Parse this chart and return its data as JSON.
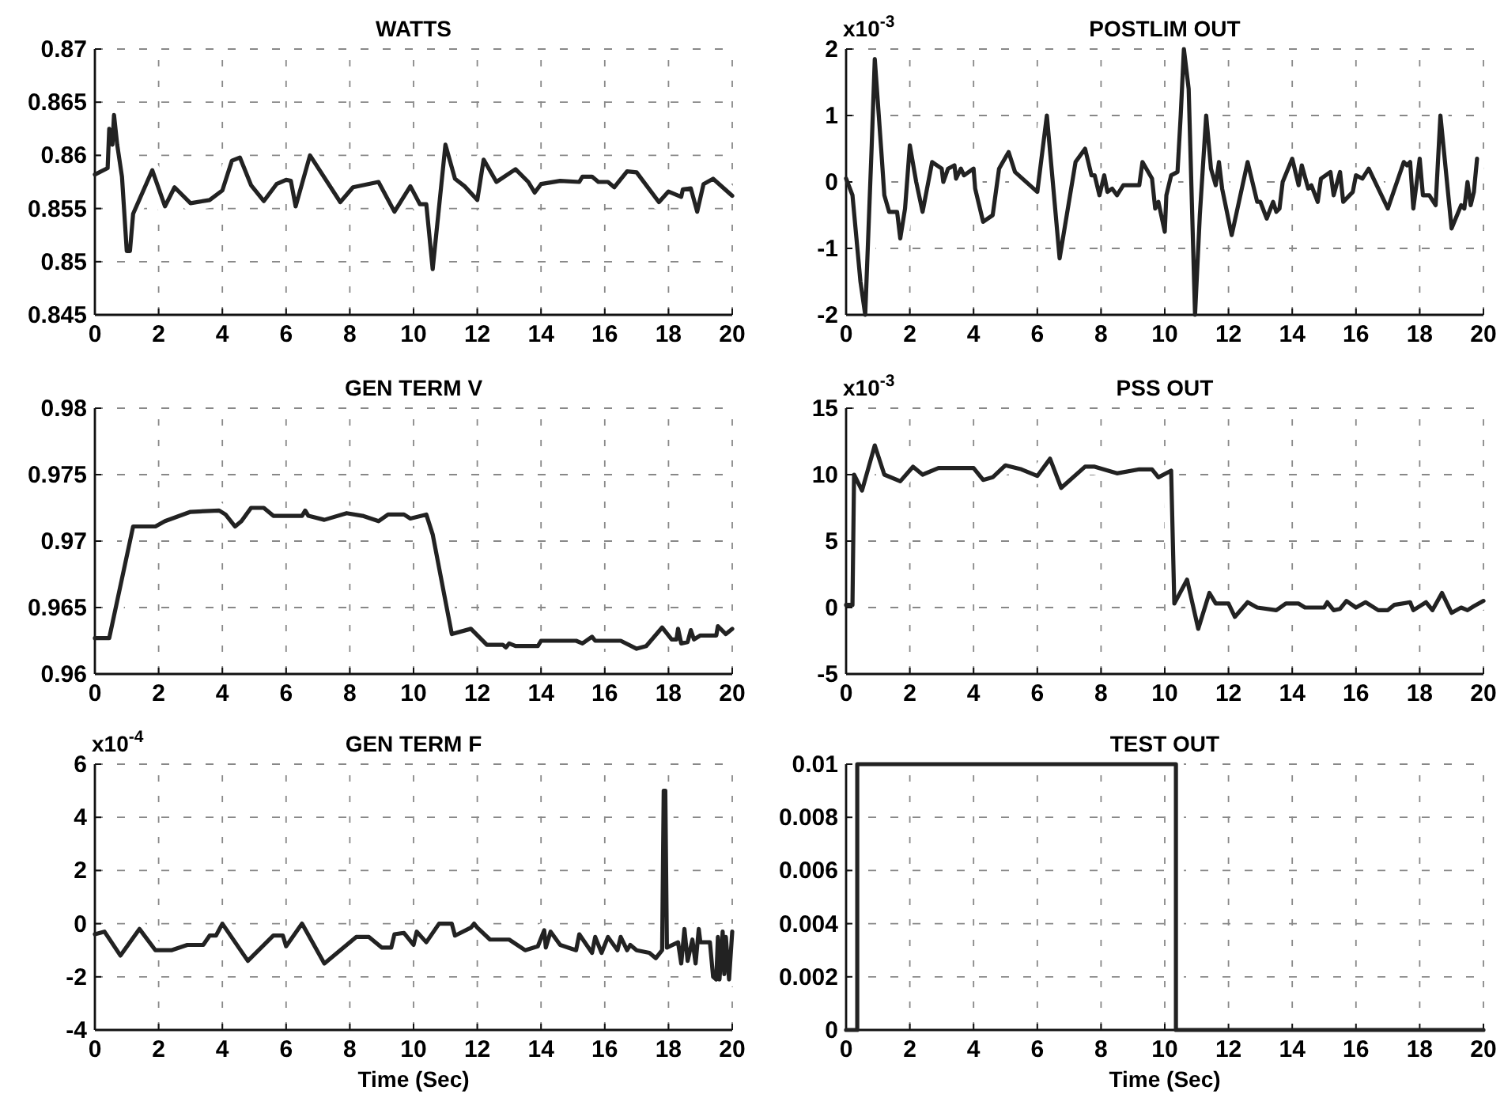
{
  "chart_data": [
    {
      "type": "line",
      "title": "WATTS",
      "xlim": [
        0,
        20
      ],
      "xticks": [
        0,
        2,
        4,
        6,
        8,
        10,
        12,
        14,
        16,
        18,
        20
      ],
      "ylim": [
        0.845,
        0.87
      ],
      "yticks": [
        0.845,
        0.85,
        0.855,
        0.86,
        0.865,
        0.87
      ],
      "grid": true,
      "x": [
        0,
        0.4,
        0.45,
        0.55,
        0.6,
        0.7,
        0.85,
        1.0,
        1.1,
        1.2,
        1.8,
        2.2,
        2.5,
        3.0,
        3.6,
        4.0,
        4.3,
        4.55,
        4.9,
        5.3,
        5.7,
        6.0,
        6.15,
        6.3,
        6.75,
        7.7,
        8.1,
        8.9,
        9.4,
        9.9,
        10.2,
        10.4,
        10.6,
        11.0,
        11.3,
        11.6,
        12.0,
        12.2,
        12.6,
        13.2,
        13.6,
        13.8,
        14.0,
        14.6,
        15.2,
        15.3,
        15.6,
        15.8,
        16.1,
        16.3,
        16.7,
        17.0,
        17.7,
        18.0,
        18.4,
        18.45,
        18.7,
        18.9,
        19.1,
        19.4,
        20.0
      ],
      "series": [
        {
          "color": "#222222",
          "values": [
            0.8582,
            0.8588,
            0.8625,
            0.861,
            0.8638,
            0.861,
            0.858,
            0.851,
            0.851,
            0.8545,
            0.8586,
            0.8552,
            0.857,
            0.8555,
            0.8558,
            0.8567,
            0.8595,
            0.8598,
            0.8572,
            0.8557,
            0.8573,
            0.8577,
            0.8576,
            0.8552,
            0.86,
            0.8556,
            0.857,
            0.8575,
            0.8547,
            0.8571,
            0.8554,
            0.8554,
            0.8493,
            0.861,
            0.8578,
            0.8571,
            0.8558,
            0.8596,
            0.8575,
            0.8587,
            0.8575,
            0.8565,
            0.8573,
            0.8576,
            0.8575,
            0.858,
            0.858,
            0.8575,
            0.8575,
            0.857,
            0.8585,
            0.8584,
            0.8556,
            0.8566,
            0.8561,
            0.8568,
            0.8569,
            0.8547,
            0.8573,
            0.8578,
            0.8562
          ]
        }
      ]
    },
    {
      "type": "line",
      "title": "POSTLIM OUT",
      "annotations": [
        "x10$^{-3}$"
      ],
      "xlim": [
        0,
        20
      ],
      "xticks": [
        0,
        2,
        4,
        6,
        8,
        10,
        12,
        14,
        16,
        18,
        20
      ],
      "ylim": [
        -2,
        2
      ],
      "yticks": [
        -2,
        -1,
        0,
        1,
        2
      ],
      "grid": true,
      "x": [
        0,
        0.2,
        0.45,
        0.6,
        0.8,
        0.9,
        1.1,
        1.2,
        1.35,
        1.6,
        1.7,
        1.85,
        2.0,
        2.2,
        2.4,
        2.7,
        3.0,
        3.05,
        3.2,
        3.4,
        3.45,
        3.6,
        3.7,
        4.0,
        4.05,
        4.3,
        4.6,
        4.8,
        5.1,
        5.3,
        6.0,
        6.3,
        6.7,
        7.2,
        7.5,
        7.7,
        7.8,
        7.95,
        8.1,
        8.2,
        8.35,
        8.5,
        8.7,
        9.0,
        9.2,
        9.3,
        9.6,
        9.7,
        9.8,
        10.0,
        10.05,
        10.2,
        10.4,
        10.5,
        10.6,
        10.75,
        10.95,
        11.1,
        11.3,
        11.45,
        11.6,
        11.7,
        11.8,
        12.1,
        12.6,
        12.9,
        13.0,
        13.2,
        13.4,
        13.5,
        13.6,
        13.7,
        14.0,
        14.2,
        14.3,
        14.5,
        14.6,
        14.8,
        14.9,
        15.2,
        15.3,
        15.5,
        15.6,
        15.9,
        16.0,
        16.2,
        16.4,
        17.0,
        17.5,
        17.6,
        17.7,
        17.8,
        18.0,
        18.1,
        18.3,
        18.5,
        18.65,
        19.0,
        19.3,
        19.4,
        19.5,
        19.6,
        19.7,
        19.8
      ],
      "series": [
        {
          "color": "#222222",
          "values": [
            0.05,
            -0.2,
            -1.5,
            -2,
            0.5,
            1.85,
            0.5,
            -0.2,
            -0.45,
            -0.45,
            -0.85,
            -0.4,
            0.55,
            0,
            -0.45,
            0.3,
            0.2,
            0,
            0.2,
            0.25,
            0.05,
            0.2,
            0.1,
            0.2,
            -0.1,
            -0.6,
            -0.5,
            0.2,
            0.45,
            0.15,
            -0.15,
            1.0,
            -1.15,
            0.3,
            0.5,
            0.1,
            0.1,
            -0.2,
            0.1,
            -0.15,
            -0.1,
            -0.2,
            -0.05,
            -0.05,
            -0.05,
            0.3,
            0.05,
            -0.4,
            -0.3,
            -0.75,
            -0.2,
            0.1,
            0.15,
            1.0,
            2.0,
            1.4,
            -2.0,
            -0.5,
            1.0,
            0.2,
            -0.05,
            0.3,
            -0.1,
            -0.8,
            0.3,
            -0.3,
            -0.3,
            -0.55,
            -0.3,
            -0.45,
            -0.4,
            0,
            0.35,
            -0.05,
            0.25,
            -0.1,
            -0.05,
            -0.3,
            0.05,
            0.15,
            -0.2,
            0.15,
            -0.3,
            -0.15,
            0.1,
            0.05,
            0.2,
            -0.4,
            0.3,
            0.25,
            0.3,
            -0.4,
            0.35,
            -0.2,
            -0.2,
            -0.35,
            1.0,
            -0.7,
            -0.35,
            -0.4,
            0,
            -0.35,
            -0.15,
            0.35
          ]
        }
      ]
    },
    {
      "type": "line",
      "title": "GEN TERM V",
      "xlim": [
        0,
        20
      ],
      "xticks": [
        0,
        2,
        4,
        6,
        8,
        10,
        12,
        14,
        16,
        18,
        20
      ],
      "ylim": [
        0.96,
        0.98
      ],
      "yticks": [
        0.96,
        0.965,
        0.97,
        0.975,
        0.98
      ],
      "grid": true,
      "x": [
        0,
        0.45,
        1.2,
        1.9,
        2.2,
        3.0,
        3.9,
        4.1,
        4.4,
        4.6,
        4.9,
        5.3,
        5.6,
        6.5,
        6.6,
        6.7,
        7.2,
        7.9,
        8.4,
        8.9,
        9.2,
        9.7,
        9.9,
        10.4,
        10.6,
        11.2,
        11.8,
        12.3,
        12.8,
        12.9,
        13.0,
        13.2,
        13.9,
        14.0,
        15.1,
        15.3,
        15.6,
        15.7,
        16.5,
        17.0,
        17.3,
        17.8,
        18.1,
        18.25,
        18.3,
        18.4,
        18.6,
        18.7,
        18.8,
        19.0,
        19.5,
        19.55,
        19.8,
        20
      ],
      "series": [
        {
          "color": "#222222",
          "values": [
            0.9627,
            0.9627,
            0.9711,
            0.9711,
            0.9715,
            0.9722,
            0.9723,
            0.972,
            0.9711,
            0.9715,
            0.9725,
            0.9725,
            0.9719,
            0.9719,
            0.9723,
            0.9719,
            0.9716,
            0.9721,
            0.9719,
            0.9715,
            0.972,
            0.972,
            0.9717,
            0.972,
            0.9705,
            0.963,
            0.9634,
            0.9622,
            0.9622,
            0.962,
            0.9623,
            0.9621,
            0.9621,
            0.9625,
            0.9625,
            0.9623,
            0.9628,
            0.9625,
            0.9625,
            0.9619,
            0.9621,
            0.9635,
            0.9626,
            0.9626,
            0.9634,
            0.9623,
            0.9624,
            0.9633,
            0.9626,
            0.9629,
            0.9629,
            0.9636,
            0.963,
            0.9634
          ]
        }
      ]
    },
    {
      "type": "line",
      "title": "PSS OUT",
      "annotations": [
        "x10$^{-3}$"
      ],
      "xlim": [
        0,
        20
      ],
      "xticks": [
        0,
        2,
        4,
        6,
        8,
        10,
        12,
        14,
        16,
        18,
        20
      ],
      "ylim": [
        -5,
        15
      ],
      "yticks": [
        -5,
        0,
        5,
        10,
        15
      ],
      "grid": true,
      "x": [
        0,
        0.2,
        0.25,
        0.5,
        0.9,
        1.2,
        1.7,
        2.1,
        2.4,
        2.9,
        4.0,
        4.3,
        4.6,
        5.0,
        5.5,
        6.0,
        6.4,
        6.75,
        7.5,
        7.8,
        8.5,
        9.2,
        9.6,
        9.8,
        10.2,
        10.3,
        10.7,
        11.05,
        11.4,
        11.6,
        12.0,
        12.2,
        12.6,
        12.9,
        13.5,
        13.8,
        14.2,
        14.4,
        15.0,
        15.1,
        15.3,
        15.5,
        15.7,
        16.0,
        16.3,
        16.7,
        17.0,
        17.2,
        17.7,
        17.8,
        18.2,
        18.4,
        18.7,
        19.0,
        19.3,
        19.5,
        19.7,
        20
      ],
      "series": [
        {
          "color": "#222222",
          "values": [
            0.2,
            0.2,
            10,
            8.8,
            12.2,
            10,
            9.5,
            10.6,
            10,
            10.5,
            10.5,
            9.6,
            9.8,
            10.7,
            10.4,
            9.9,
            11.2,
            9,
            10.6,
            10.6,
            10.1,
            10.4,
            10.4,
            9.8,
            10.3,
            0.3,
            2.1,
            -1.6,
            1.1,
            0.3,
            0.3,
            -0.7,
            0.4,
            0,
            -0.2,
            0.3,
            0.3,
            0,
            0,
            0.4,
            -0.2,
            -0.1,
            0.5,
            0,
            0.4,
            -0.2,
            -0.2,
            0.2,
            0.4,
            -0.2,
            0.4,
            -0.2,
            1.1,
            -0.4,
            0,
            -0.2,
            0.1,
            0.5
          ]
        }
      ]
    },
    {
      "type": "line",
      "title": "GEN TERM F",
      "xlabel": "Time (Sec)",
      "annotations": [
        "x10$^{-4}$"
      ],
      "xlim": [
        0,
        20
      ],
      "xticks": [
        0,
        2,
        4,
        6,
        8,
        10,
        12,
        14,
        16,
        18,
        20
      ],
      "ylim": [
        -4,
        6
      ],
      "yticks": [
        -4,
        -2,
        0,
        2,
        4,
        6
      ],
      "grid": true,
      "x": [
        0,
        0.3,
        0.8,
        1.4,
        1.9,
        2.4,
        2.9,
        3.4,
        3.6,
        3.8,
        4.0,
        4.8,
        5.6,
        5.9,
        6.0,
        6.5,
        7.2,
        8.2,
        8.6,
        9.0,
        9.3,
        9.4,
        9.7,
        10.0,
        10.1,
        10.4,
        10.8,
        11.2,
        11.3,
        11.8,
        11.9,
        12.0,
        12.4,
        13.0,
        13.5,
        13.9,
        14.1,
        14.15,
        14.3,
        14.6,
        15.1,
        15.2,
        15.6,
        15.7,
        15.9,
        16.1,
        16.4,
        16.5,
        16.7,
        16.8,
        17.0,
        17.4,
        17.6,
        17.8,
        17.85,
        17.9,
        17.95,
        18.3,
        18.4,
        18.5,
        18.6,
        18.75,
        18.85,
        18.95,
        19.0,
        19.3,
        19.4,
        19.5,
        19.55,
        19.6,
        19.7,
        19.75,
        19.8,
        19.9,
        20
      ],
      "series": [
        {
          "color": "#222222",
          "values": [
            -0.4,
            -0.3,
            -1.2,
            -0.2,
            -1.0,
            -1.0,
            -0.8,
            -0.8,
            -0.45,
            -0.45,
            0,
            -1.4,
            -0.45,
            -0.45,
            -0.85,
            0,
            -1.5,
            -0.5,
            -0.5,
            -0.9,
            -0.9,
            -0.4,
            -0.35,
            -0.8,
            -0.3,
            -0.7,
            0,
            0,
            -0.45,
            -0.15,
            0,
            -0.15,
            -0.6,
            -0.6,
            -1.0,
            -0.85,
            -0.25,
            -0.9,
            -0.3,
            -0.8,
            -1.0,
            -0.4,
            -1.1,
            -0.5,
            -1.1,
            -0.5,
            -1.0,
            -0.5,
            -1.0,
            -0.8,
            -1.0,
            -1.1,
            -1.3,
            -1.0,
            5.0,
            5.0,
            -0.9,
            -0.7,
            -1.5,
            -0.2,
            -1.4,
            -0.6,
            -1.5,
            -0.2,
            -0.7,
            -0.7,
            -2.0,
            -2.1,
            -0.5,
            -2.1,
            -0.3,
            -1.9,
            -0.5,
            -2.1,
            -0.3
          ]
        }
      ]
    },
    {
      "type": "line",
      "title": "TEST OUT",
      "xlabel": "Time (Sec)",
      "xlim": [
        0,
        20
      ],
      "xticks": [
        0,
        2,
        4,
        6,
        8,
        10,
        12,
        14,
        16,
        18,
        20
      ],
      "ylim": [
        0,
        0.01
      ],
      "yticks": [
        0,
        0.002,
        0.004,
        0.006,
        0.008,
        0.01
      ],
      "grid": true,
      "x": [
        0,
        0.35,
        0.35,
        10.35,
        10.35,
        20
      ],
      "series": [
        {
          "color": "#222222",
          "values": [
            0,
            0,
            0.01,
            0.01,
            0,
            0
          ]
        }
      ]
    }
  ]
}
